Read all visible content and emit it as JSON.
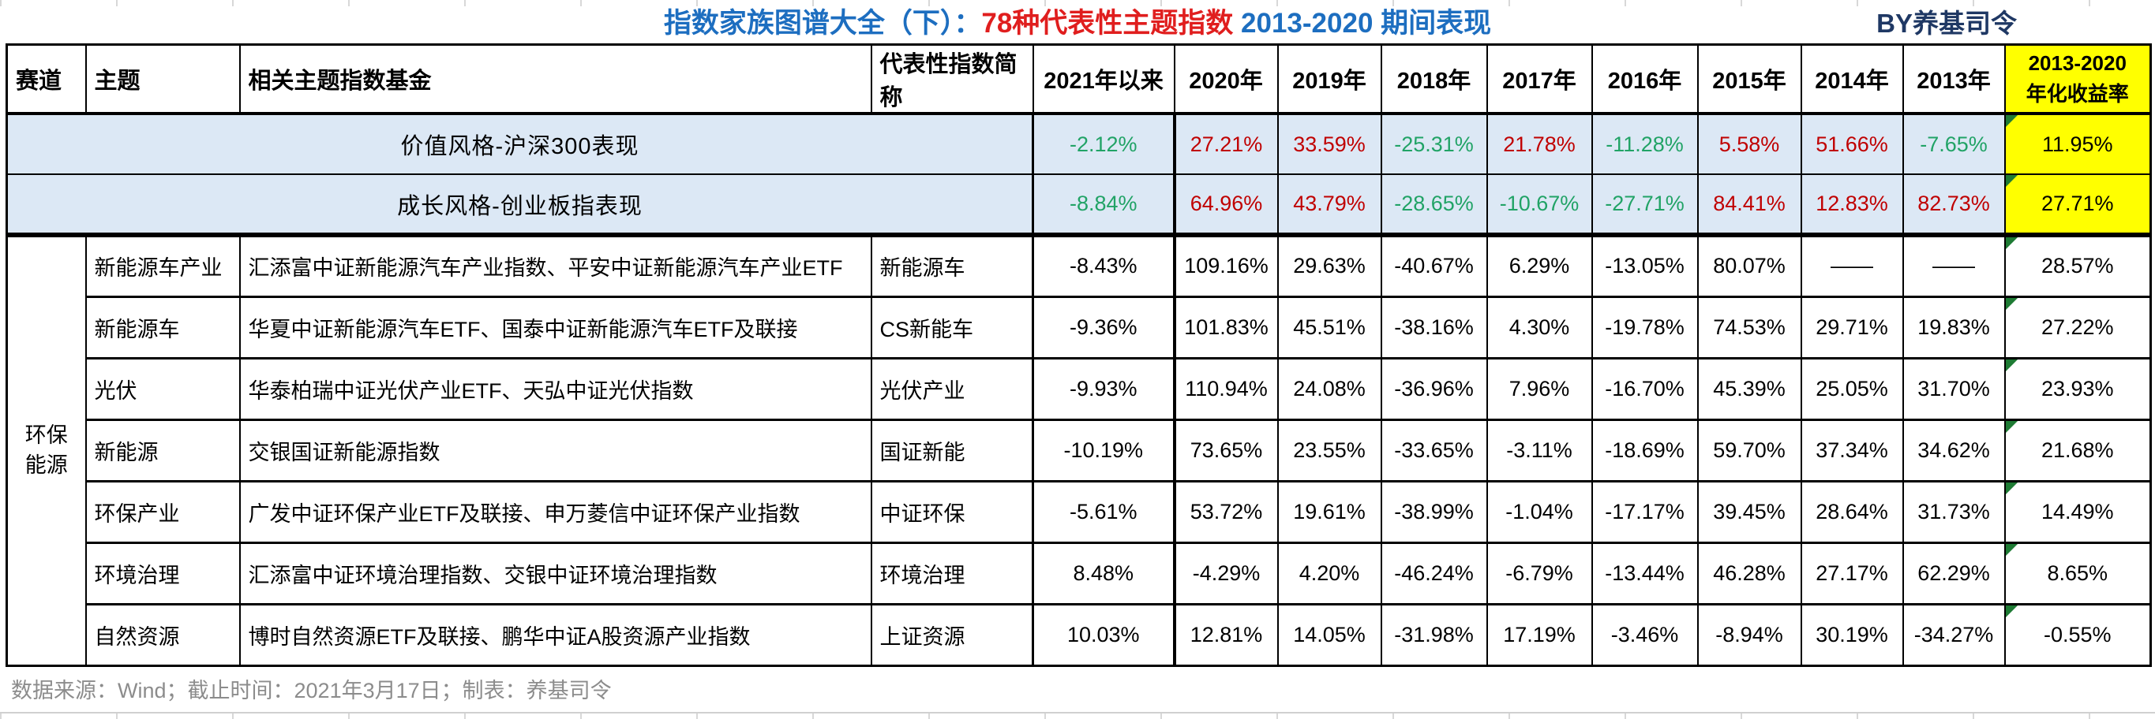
{
  "header": {
    "title_part1": "指数家族图谱大全（下）：",
    "title_part2": "78种代表性主题指数",
    "title_part3": " 2013-2020 期间表现",
    "byline": "BY养基司令"
  },
  "footer": {
    "text": "数据来源：Wind；截止时间：2021年3月17日；制表：养基司令"
  },
  "colors": {
    "title_blue": "#1D6EC0",
    "title_red": "#E01E1E",
    "byline_navy": "#1F3864",
    "positive_red": "#C00000",
    "negative_green": "#21A366",
    "highlight_yellow": "#FFFF00",
    "benchmark_row_blue": "#DCE8F5",
    "comment_triangle_green": "#1E7B34",
    "footer_gray": "#8C8C8C"
  },
  "chart_data": {
    "type": "table",
    "title": "指数家族图谱大全（下）：78种代表性主题指数 2013-2020 期间表现",
    "columns": [
      "赛道",
      "主题",
      "相关主题指数基金",
      "代表性指数简称",
      "2021年以来",
      "2020年",
      "2019年",
      "2018年",
      "2017年",
      "2016年",
      "2015年",
      "2014年",
      "2013年",
      "2013-2020\n年化收益率"
    ],
    "benchmark_rows": [
      {
        "label": "价值风格-沪深300表现",
        "values": [
          "-2.12%",
          "27.21%",
          "33.59%",
          "-25.31%",
          "21.78%",
          "-11.28%",
          "5.58%",
          "51.66%",
          "-7.65%",
          "11.95%"
        ]
      },
      {
        "label": "成长风格-创业板指表现",
        "values": [
          "-8.84%",
          "64.96%",
          "43.79%",
          "-28.65%",
          "-10.67%",
          "-27.71%",
          "84.41%",
          "12.83%",
          "82.73%",
          "27.71%"
        ]
      }
    ],
    "track_label": "环保\n能源",
    "rows": [
      {
        "theme": "新能源车产业",
        "funds": "汇添富中证新能源汽车产业指数、平安中证新能源汽车产业ETF",
        "index": "新能源车",
        "values": [
          "-8.43%",
          "109.16%",
          "29.63%",
          "-40.67%",
          "6.29%",
          "-13.05%",
          "80.07%",
          "——",
          "——",
          "28.57%"
        ]
      },
      {
        "theme": "新能源车",
        "funds": "华夏中证新能源汽车ETF、国泰中证新能源汽车ETF及联接",
        "index": "CS新能车",
        "values": [
          "-9.36%",
          "101.83%",
          "45.51%",
          "-38.16%",
          "4.30%",
          "-19.78%",
          "74.53%",
          "29.71%",
          "19.83%",
          "27.22%"
        ]
      },
      {
        "theme": "光伏",
        "funds": "华泰柏瑞中证光伏产业ETF、天弘中证光伏指数",
        "index": "光伏产业",
        "values": [
          "-9.93%",
          "110.94%",
          "24.08%",
          "-36.96%",
          "7.96%",
          "-16.70%",
          "45.39%",
          "25.05%",
          "31.70%",
          "23.93%"
        ]
      },
      {
        "theme": "新能源",
        "funds": "交银国证新能源指数",
        "index": "国证新能",
        "values": [
          "-10.19%",
          "73.65%",
          "23.55%",
          "-33.65%",
          "-3.11%",
          "-18.69%",
          "59.70%",
          "37.34%",
          "34.62%",
          "21.68%"
        ]
      },
      {
        "theme": "环保产业",
        "funds": "广发中证环保产业ETF及联接、申万菱信中证环保产业指数",
        "index": "中证环保",
        "values": [
          "-5.61%",
          "53.72%",
          "19.61%",
          "-38.99%",
          "-1.04%",
          "-17.17%",
          "39.45%",
          "28.64%",
          "31.73%",
          "14.49%"
        ]
      },
      {
        "theme": "环境治理",
        "funds": "汇添富中证环境治理指数、交银中证环境治理指数",
        "index": "环境治理",
        "values": [
          "8.48%",
          "-4.29%",
          "4.20%",
          "-46.24%",
          "-6.79%",
          "-13.44%",
          "46.28%",
          "27.17%",
          "62.29%",
          "8.65%"
        ]
      },
      {
        "theme": "自然资源",
        "funds": "博时自然资源ETF及联接、鹏华中证A股资源产业指数",
        "index": "上证资源",
        "values": [
          "10.03%",
          "12.81%",
          "14.05%",
          "-31.98%",
          "17.19%",
          "-3.46%",
          "-8.94%",
          "30.19%",
          "-34.27%",
          "-0.55%"
        ]
      }
    ]
  }
}
